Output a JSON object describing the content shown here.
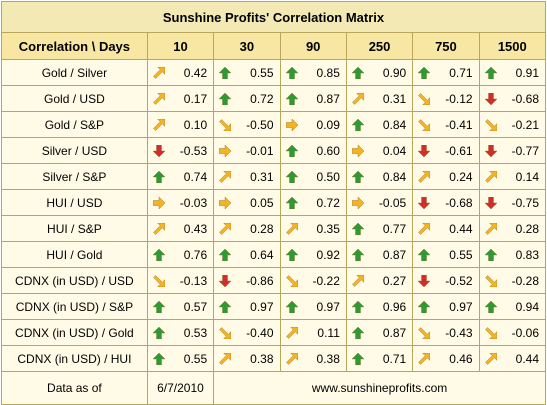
{
  "title": "Sunshine Profits' Correlation Matrix",
  "header": {
    "label": "Correlation \\ Days",
    "periods": [
      "10",
      "30",
      "90",
      "250",
      "750",
      "1500"
    ]
  },
  "colors": {
    "border": "#b8a65a",
    "header_bg": "#f7e7a3",
    "title_bg": "#f2e9b5",
    "cell_bg": "#fffbe6",
    "arrow_up": "#2e9a35",
    "arrow_down": "#d22d2d",
    "arrow_diag_up": "#f5b324",
    "arrow_diag_down": "#f5b324",
    "arrow_right": "#f5b324"
  },
  "arrow_legend": {
    "up": "up-arrow-icon (green)",
    "down": "down-arrow-icon (red)",
    "ne": "up-right-arrow-icon (orange)",
    "se": "down-right-arrow-icon (orange)",
    "right": "right-arrow-icon (orange)"
  },
  "rows": [
    {
      "label": "Gold / Silver",
      "cells": [
        {
          "v": "0.42",
          "a": "ne"
        },
        {
          "v": "0.55",
          "a": "up"
        },
        {
          "v": "0.85",
          "a": "up"
        },
        {
          "v": "0.90",
          "a": "up"
        },
        {
          "v": "0.71",
          "a": "up"
        },
        {
          "v": "0.91",
          "a": "up"
        }
      ]
    },
    {
      "label": "Gold / USD",
      "cells": [
        {
          "v": "0.17",
          "a": "ne"
        },
        {
          "v": "0.72",
          "a": "up"
        },
        {
          "v": "0.87",
          "a": "up"
        },
        {
          "v": "0.31",
          "a": "ne"
        },
        {
          "v": "-0.12",
          "a": "se"
        },
        {
          "v": "-0.68",
          "a": "down"
        }
      ]
    },
    {
      "label": "Gold / S&P",
      "cells": [
        {
          "v": "0.10",
          "a": "ne"
        },
        {
          "v": "-0.50",
          "a": "se"
        },
        {
          "v": "0.09",
          "a": "right"
        },
        {
          "v": "0.84",
          "a": "up"
        },
        {
          "v": "-0.41",
          "a": "se"
        },
        {
          "v": "-0.21",
          "a": "se"
        }
      ]
    },
    {
      "label": "Silver / USD",
      "cells": [
        {
          "v": "-0.53",
          "a": "down"
        },
        {
          "v": "-0.01",
          "a": "right"
        },
        {
          "v": "0.60",
          "a": "up"
        },
        {
          "v": "0.04",
          "a": "right"
        },
        {
          "v": "-0.61",
          "a": "down"
        },
        {
          "v": "-0.77",
          "a": "down"
        }
      ]
    },
    {
      "label": "Silver / S&P",
      "cells": [
        {
          "v": "0.74",
          "a": "up"
        },
        {
          "v": "0.31",
          "a": "ne"
        },
        {
          "v": "0.50",
          "a": "up"
        },
        {
          "v": "0.84",
          "a": "up"
        },
        {
          "v": "0.24",
          "a": "ne"
        },
        {
          "v": "0.14",
          "a": "ne"
        }
      ]
    },
    {
      "label": "HUI / USD",
      "cells": [
        {
          "v": "-0.03",
          "a": "right"
        },
        {
          "v": "0.05",
          "a": "right"
        },
        {
          "v": "0.72",
          "a": "up"
        },
        {
          "v": "-0.05",
          "a": "right"
        },
        {
          "v": "-0.68",
          "a": "down"
        },
        {
          "v": "-0.75",
          "a": "down"
        }
      ]
    },
    {
      "label": "HUI / S&P",
      "cells": [
        {
          "v": "0.43",
          "a": "ne"
        },
        {
          "v": "0.28",
          "a": "ne"
        },
        {
          "v": "0.35",
          "a": "ne"
        },
        {
          "v": "0.77",
          "a": "up"
        },
        {
          "v": "0.44",
          "a": "ne"
        },
        {
          "v": "0.28",
          "a": "ne"
        }
      ]
    },
    {
      "label": "HUI / Gold",
      "cells": [
        {
          "v": "0.76",
          "a": "up"
        },
        {
          "v": "0.64",
          "a": "up"
        },
        {
          "v": "0.92",
          "a": "up"
        },
        {
          "v": "0.87",
          "a": "up"
        },
        {
          "v": "0.55",
          "a": "up"
        },
        {
          "v": "0.83",
          "a": "up"
        }
      ]
    },
    {
      "label": "CDNX (in USD) / USD",
      "cells": [
        {
          "v": "-0.13",
          "a": "se"
        },
        {
          "v": "-0.86",
          "a": "down"
        },
        {
          "v": "-0.22",
          "a": "se"
        },
        {
          "v": "0.27",
          "a": "ne"
        },
        {
          "v": "-0.52",
          "a": "down"
        },
        {
          "v": "-0.28",
          "a": "se"
        }
      ]
    },
    {
      "label": "CDNX (in USD) / S&P",
      "cells": [
        {
          "v": "0.57",
          "a": "up"
        },
        {
          "v": "0.97",
          "a": "up"
        },
        {
          "v": "0.97",
          "a": "up"
        },
        {
          "v": "0.96",
          "a": "up"
        },
        {
          "v": "0.97",
          "a": "up"
        },
        {
          "v": "0.94",
          "a": "up"
        }
      ]
    },
    {
      "label": "CDNX (in USD) / Gold",
      "cells": [
        {
          "v": "0.53",
          "a": "up"
        },
        {
          "v": "-0.40",
          "a": "se"
        },
        {
          "v": "0.11",
          "a": "ne"
        },
        {
          "v": "0.87",
          "a": "up"
        },
        {
          "v": "-0.43",
          "a": "se"
        },
        {
          "v": "-0.06",
          "a": "se"
        }
      ]
    },
    {
      "label": "CDNX (in USD) / HUI",
      "cells": [
        {
          "v": "0.55",
          "a": "up"
        },
        {
          "v": "0.38",
          "a": "ne"
        },
        {
          "v": "0.38",
          "a": "ne"
        },
        {
          "v": "0.71",
          "a": "up"
        },
        {
          "v": "0.46",
          "a": "ne"
        },
        {
          "v": "0.44",
          "a": "ne"
        }
      ]
    }
  ],
  "footer": {
    "data_label": "Data as of",
    "date": "6/7/2010",
    "website": "www.sunshineprofits.com"
  }
}
